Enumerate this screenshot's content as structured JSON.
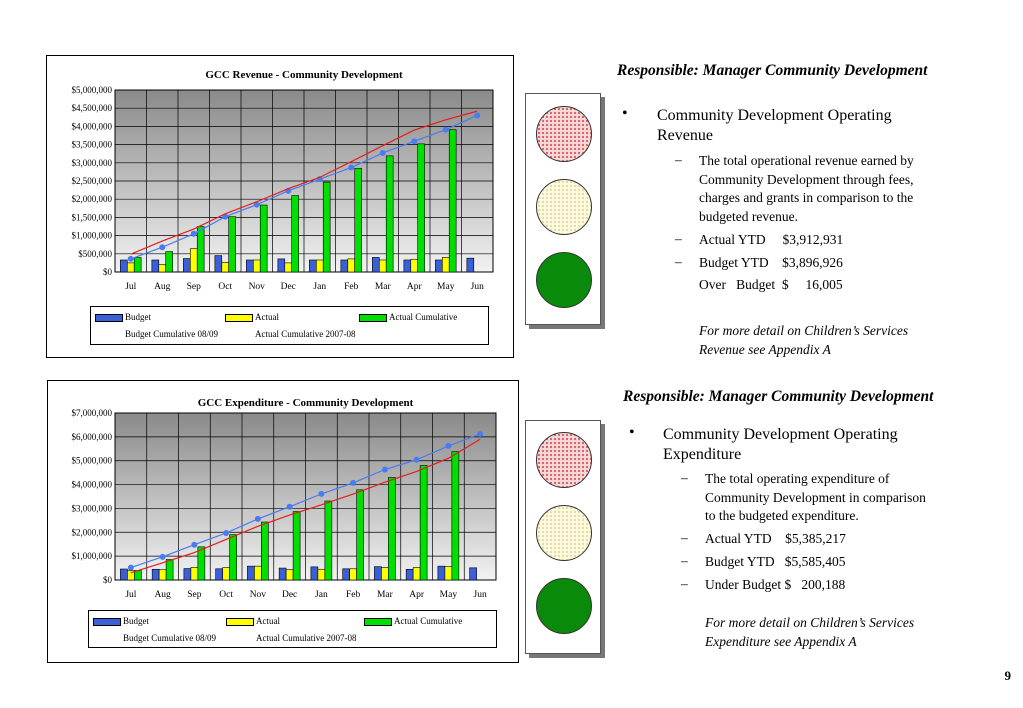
{
  "chart_data": [
    {
      "type": "bar",
      "title": "GCC Revenue - Community Development",
      "categories": [
        "Jul",
        "Aug",
        "Sep",
        "Oct",
        "Nov",
        "Dec",
        "Jan",
        "Feb",
        "Mar",
        "Apr",
        "May",
        "Jun"
      ],
      "ylim": [
        0,
        5000000
      ],
      "yticks": [
        "$0",
        "$500,000",
        "$1,000,000",
        "$1,500,000",
        "$2,000,000",
        "$2,500,000",
        "$3,000,000",
        "$3,500,000",
        "$4,000,000",
        "$4,500,000",
        "$5,000,000"
      ],
      "grid": true,
      "legend_position": "bottom",
      "series": [
        {
          "name": "Budget",
          "kind": "bar",
          "color": "#3b5fd8",
          "values": [
            330000,
            330000,
            370000,
            450000,
            330000,
            360000,
            330000,
            330000,
            400000,
            330000,
            330000,
            380000
          ]
        },
        {
          "name": "Actual",
          "kind": "bar",
          "color": "#ffff00",
          "values": [
            250000,
            200000,
            640000,
            260000,
            330000,
            250000,
            330000,
            360000,
            330000,
            350000,
            400000,
            null
          ]
        },
        {
          "name": "Actual Cumulative",
          "kind": "bar",
          "color": "#00e000",
          "values": [
            400000,
            560000,
            1250000,
            1520000,
            1840000,
            2100000,
            2470000,
            2850000,
            3190000,
            3520000,
            3910000,
            null
          ]
        },
        {
          "name": "Budget Cumulative 08/09",
          "kind": "line",
          "marker": "circle",
          "color": "#4a7cf0",
          "values": [
            360000,
            680000,
            1050000,
            1520000,
            1850000,
            2230000,
            2550000,
            2870000,
            3270000,
            3590000,
            3910000,
            4300000
          ]
        },
        {
          "name": "Actual Cumulative 2007-08",
          "kind": "line",
          "color": "#e02020",
          "values": [
            490000,
            850000,
            1180000,
            1600000,
            1930000,
            2290000,
            2600000,
            3030000,
            3470000,
            3900000,
            4180000,
            4420000
          ]
        }
      ]
    },
    {
      "type": "bar",
      "title": "GCC Expenditure - Community Development",
      "categories": [
        "Jul",
        "Aug",
        "Sep",
        "Oct",
        "Nov",
        "Dec",
        "Jan",
        "Feb",
        "Mar",
        "Apr",
        "May",
        "Jun"
      ],
      "ylim": [
        0,
        7000000
      ],
      "yticks": [
        "$0",
        "$1,000,000",
        "$2,000,000",
        "$3,000,000",
        "$4,000,000",
        "$5,000,000",
        "$6,000,000",
        "$7,000,000"
      ],
      "grid": true,
      "legend_position": "bottom",
      "series": [
        {
          "name": "Budget",
          "kind": "bar",
          "color": "#3b5fd8",
          "values": [
            460000,
            450000,
            480000,
            470000,
            580000,
            500000,
            550000,
            470000,
            560000,
            450000,
            580000,
            510000
          ]
        },
        {
          "name": "Actual",
          "kind": "bar",
          "color": "#ffff00",
          "values": [
            390000,
            430000,
            530000,
            520000,
            580000,
            430000,
            450000,
            470000,
            520000,
            520000,
            560000,
            null
          ]
        },
        {
          "name": "Actual Cumulative",
          "kind": "bar",
          "color": "#00e000",
          "values": [
            400000,
            860000,
            1390000,
            1900000,
            2430000,
            2870000,
            3310000,
            3780000,
            4300000,
            4800000,
            5380000,
            null
          ]
        },
        {
          "name": "Budget Cumulative 08/09",
          "kind": "line",
          "marker": "circle",
          "color": "#4a7cf0",
          "values": [
            520000,
            970000,
            1480000,
            1970000,
            2560000,
            3070000,
            3610000,
            4070000,
            4630000,
            5040000,
            5620000,
            6120000
          ]
        },
        {
          "name": "Actual Cumulative 2007-08",
          "kind": "line",
          "color": "#e02020",
          "values": [
            300000,
            720000,
            1150000,
            1700000,
            2250000,
            2720000,
            3150000,
            3600000,
            4100000,
            4550000,
            5100000,
            5900000
          ]
        }
      ]
    }
  ],
  "revenue": {
    "responsible": "Responsible: Manager Community Development",
    "bullet": "•",
    "heading_line1": "Community Development Operating",
    "heading_line2": "Revenue",
    "dash": "–",
    "desc_lines": [
      "The total operational revenue earned by",
      "Community Development through fees,",
      "charges and grants in comparison to the",
      "budgeted revenue."
    ],
    "actual_ytd": "Actual YTD     $3,912,931",
    "budget_ytd": "Budget YTD    $3,896,926",
    "over_budget": "Over   Budget  $     16,005",
    "note_line1": "For  more detail on Children’s Services",
    "note_line2": "Revenue see Appendix A",
    "light_colors": {
      "red": "#f6d6d6",
      "amber": "#fdfbd9",
      "green": "#0a8a0a"
    }
  },
  "expenditure": {
    "responsible": "Responsible: Manager Community Development",
    "bullet": "•",
    "heading_line1": "Community Development Operating",
    "heading_line2": "Expenditure",
    "dash": "–",
    "desc_lines": [
      "The total operating expenditure of",
      "Community Development  in comparison",
      "to the budgeted expenditure."
    ],
    "actual_ytd": "Actual YTD    $5,385,217",
    "budget_ytd": "Budget YTD   $5,585,405",
    "under_budget": "Under Budget $   200,188",
    "note_line1": "For  more detail on Children’s Services",
    "note_line2": "Expenditure see Appendix A"
  },
  "page_number": "9"
}
